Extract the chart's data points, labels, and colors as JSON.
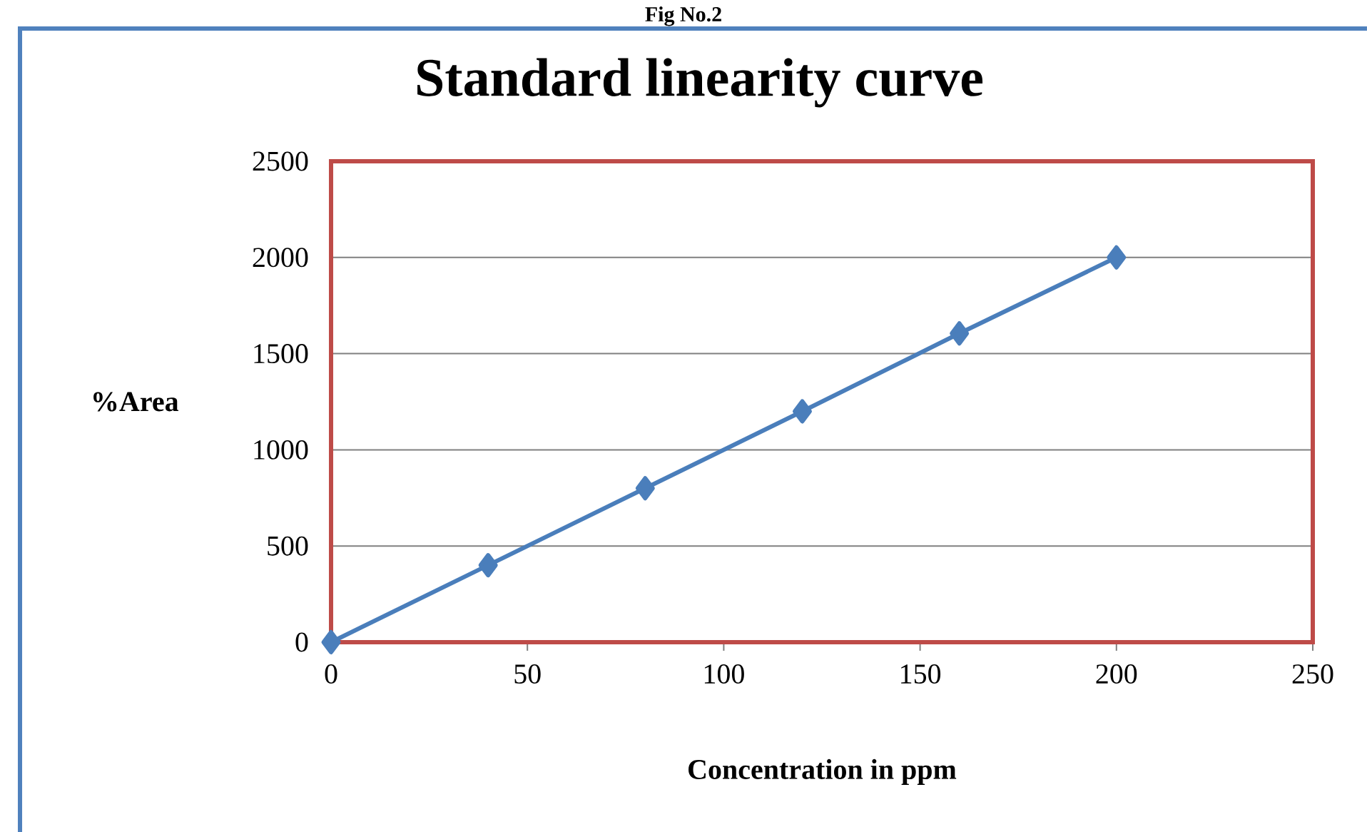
{
  "chart_data": {
    "type": "line",
    "title": "Standard linearity curve",
    "xlabel": "Concentration in ppm",
    "ylabel": "%Area",
    "annotations": [
      "Fig No.2"
    ],
    "x": [
      0,
      40,
      80,
      120,
      160,
      200
    ],
    "series": [
      {
        "color": "#4a7ebb",
        "values": [
          0,
          400,
          800,
          1200,
          1605,
          2000
        ]
      }
    ],
    "xlim": [
      0,
      250
    ],
    "xticks": [
      0,
      50,
      100,
      150,
      200,
      250
    ],
    "ylim": [
      0,
      2500
    ],
    "yticks": [
      0,
      500,
      1000,
      1500,
      2000,
      2500
    ],
    "grid": "y",
    "marker": "diamond",
    "line_style": "solid"
  }
}
